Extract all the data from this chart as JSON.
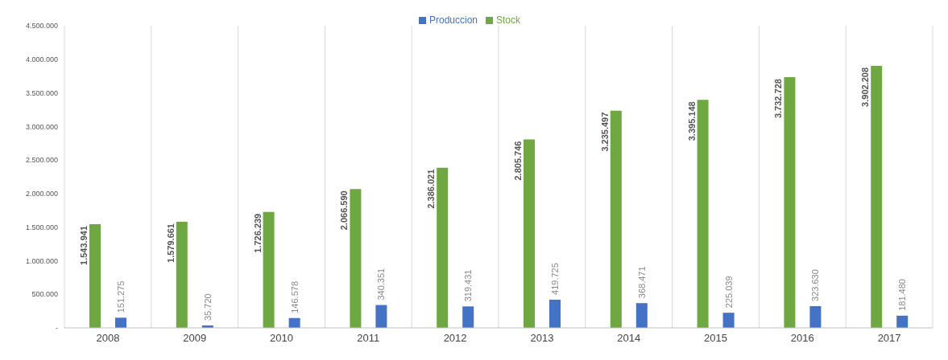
{
  "chart_data": {
    "type": "bar",
    "categories": [
      "2008",
      "2009",
      "2010",
      "2011",
      "2012",
      "2013",
      "2014",
      "2015",
      "2016",
      "2017"
    ],
    "series": [
      {
        "name": "Stock",
        "color": "#6fa843",
        "values": [
          1543941,
          1579661,
          1726239,
          2066590,
          2386021,
          2805746,
          3235497,
          3395148,
          3732728,
          3902208
        ],
        "value_labels": [
          "1.543.941",
          "1.579.661",
          "1.726.239",
          "2.066.590",
          "2.386.021",
          "2.805.746",
          "3.235.497",
          "3.395.148",
          "3.732.728",
          "3.902.208"
        ]
      },
      {
        "name": "Produccion",
        "color": "#4472c4",
        "values": [
          151275,
          35720,
          146578,
          340351,
          319431,
          419725,
          368471,
          225039,
          323630,
          181480
        ],
        "value_labels": [
          "151.275",
          "35.720",
          "146.578",
          "340.351",
          "319.431",
          "419.725",
          "368.471",
          "225.039",
          "323.630",
          "181.480"
        ]
      }
    ],
    "ylim": [
      0,
      4500000
    ],
    "yticks": [
      {
        "value": 0,
        "label": "-"
      },
      {
        "value": 500000,
        "label": "500.000"
      },
      {
        "value": 1000000,
        "label": "1.000.000"
      },
      {
        "value": 1500000,
        "label": "1.500.000"
      },
      {
        "value": 2000000,
        "label": "2.000.000"
      },
      {
        "value": 2500000,
        "label": "2.500.000"
      },
      {
        "value": 3000000,
        "label": "3.000.000"
      },
      {
        "value": 3500000,
        "label": "3.500.000"
      },
      {
        "value": 4000000,
        "label": "4.000.000"
      },
      {
        "value": 4500000,
        "label": "4.500.000"
      }
    ],
    "grid": "x",
    "legend": "top"
  }
}
